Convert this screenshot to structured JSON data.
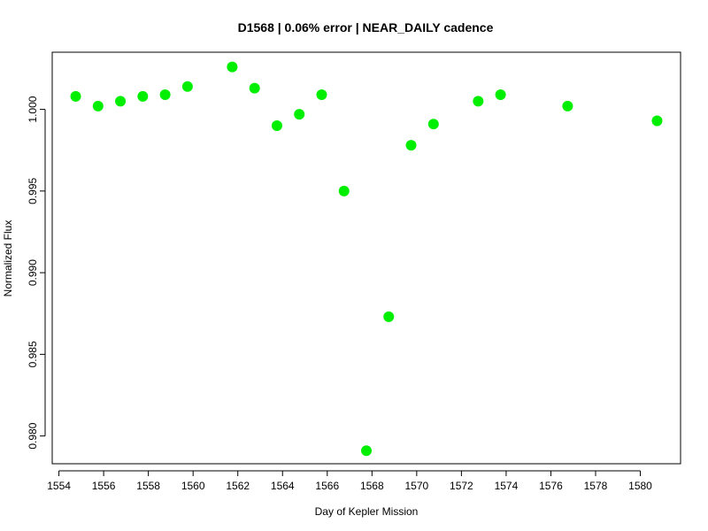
{
  "chart_data": {
    "type": "scatter",
    "title": "D1568 | 0.06% error | NEAR_DAILY cadence",
    "xlabel": "Day of Kepler Mission",
    "ylabel": "Normalized Flux",
    "xlim": [
      1553.7,
      1581.8
    ],
    "ylim": [
      0.9783,
      1.0035
    ],
    "xticks": [
      1554,
      1556,
      1558,
      1560,
      1562,
      1564,
      1566,
      1568,
      1570,
      1572,
      1574,
      1576,
      1578,
      1580
    ],
    "yticks": [
      0.98,
      0.985,
      0.99,
      0.995,
      1.0
    ],
    "ytick_labels": [
      "0.980",
      "0.985",
      "0.990",
      "0.995",
      "1.000"
    ],
    "grid": false,
    "point_color": "#00ee00",
    "points": [
      {
        "x": 1554.75,
        "y": 1.0008
      },
      {
        "x": 1555.75,
        "y": 1.0002
      },
      {
        "x": 1556.75,
        "y": 1.0005
      },
      {
        "x": 1557.75,
        "y": 1.0008
      },
      {
        "x": 1558.75,
        "y": 1.0009
      },
      {
        "x": 1559.75,
        "y": 1.0014
      },
      {
        "x": 1561.75,
        "y": 1.0026
      },
      {
        "x": 1562.75,
        "y": 1.0013
      },
      {
        "x": 1563.75,
        "y": 0.999
      },
      {
        "x": 1564.75,
        "y": 0.9997
      },
      {
        "x": 1565.75,
        "y": 1.0009
      },
      {
        "x": 1566.75,
        "y": 0.995
      },
      {
        "x": 1567.75,
        "y": 0.9791
      },
      {
        "x": 1568.75,
        "y": 0.9873
      },
      {
        "x": 1569.75,
        "y": 0.9978
      },
      {
        "x": 1570.75,
        "y": 0.9991
      },
      {
        "x": 1572.75,
        "y": 1.0005
      },
      {
        "x": 1573.75,
        "y": 1.0009
      },
      {
        "x": 1576.75,
        "y": 1.0002
      },
      {
        "x": 1580.75,
        "y": 0.9993
      }
    ]
  }
}
